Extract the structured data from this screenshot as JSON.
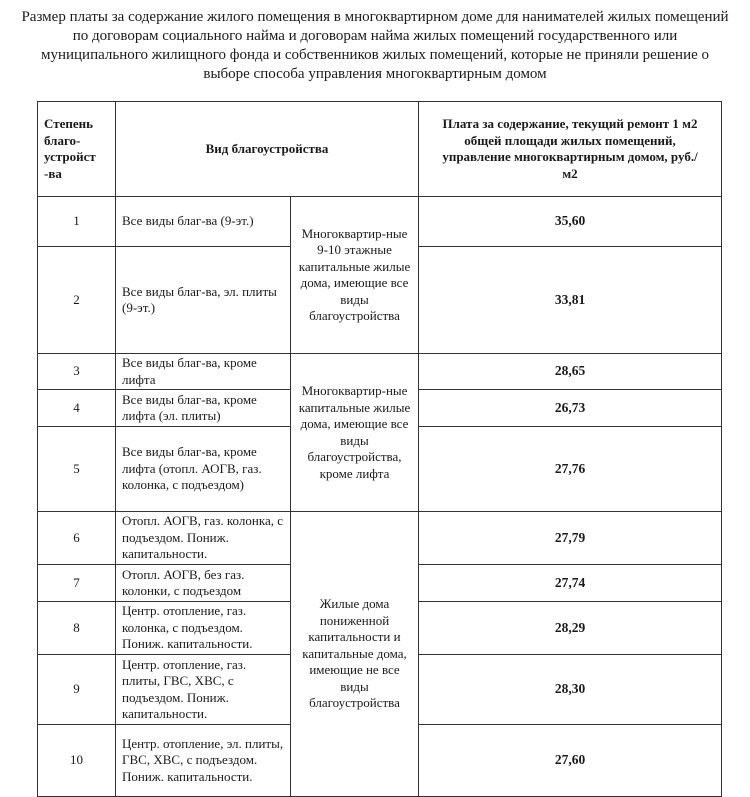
{
  "title": "Размер платы за содержание жилого помещения в многоквартирном доме для нанимателей жилых помещений по договорам социального найма и договорам найма жилых помещений государственного или муниципального жилищного фонда и собственников жилых помещений, которые не приняли решение о выборе способа управления многоквартирным домом",
  "table": {
    "headers": {
      "degree": "Степень благо-устройст -ва",
      "type": "Вид благоустройства",
      "fee": "Плата за содержание, текущий ремонт 1 м2 общей площади жилых помещений, управление многоквартирным домом, руб./м2"
    },
    "groups": [
      "Многоквартир-ные 9-10 этажные капитальные жилые дома, имеющие все виды благоустройства",
      "Многоквартир-ные капитальные жилые дома, имеющие все виды благоустройства, кроме лифта",
      "Жилые дома пониженной капитальности и капитальные дома, имеющие не все виды благоустройства"
    ],
    "rows": [
      {
        "degree": "1",
        "desc": "Все виды благ-ва (9-эт.)",
        "fee": "35,60"
      },
      {
        "degree": "2",
        "desc": "Все виды благ-ва, эл. плиты (9-эт.)",
        "fee": "33,81"
      },
      {
        "degree": "3",
        "desc": "Все виды благ-ва, кроме лифта",
        "fee": "28,65"
      },
      {
        "degree": "4",
        "desc": "Все виды благ-ва, кроме лифта (эл. плиты)",
        "fee": "26,73"
      },
      {
        "degree": "5",
        "desc": "Все виды благ-ва, кроме лифта (отопл. АОГВ, газ. колонка, с подъездом)",
        "fee": "27,76"
      },
      {
        "degree": "6",
        "desc": "Отопл. АОГВ, газ. колонка, с подъездом. Пониж. капитальности.",
        "fee": "27,79"
      },
      {
        "degree": "7",
        "desc": "Отопл. АОГВ, без газ. колонки, с подъездом",
        "fee": "27,74"
      },
      {
        "degree": "8",
        "desc": "Центр. отопление, газ. колонка, с подъездом. Пониж. капитальности.",
        "fee": "28,29"
      },
      {
        "degree": "9",
        "desc": "Центр. отопление, газ. плиты, ГВС, ХВС, с подъездом. Пониж. капитальности.",
        "fee": "28,30"
      },
      {
        "degree": "10",
        "desc": "Центр. отопление, эл. плиты, ГВС, ХВС, с подъездом. Пониж. капитальности.",
        "fee": "27,60"
      }
    ]
  }
}
